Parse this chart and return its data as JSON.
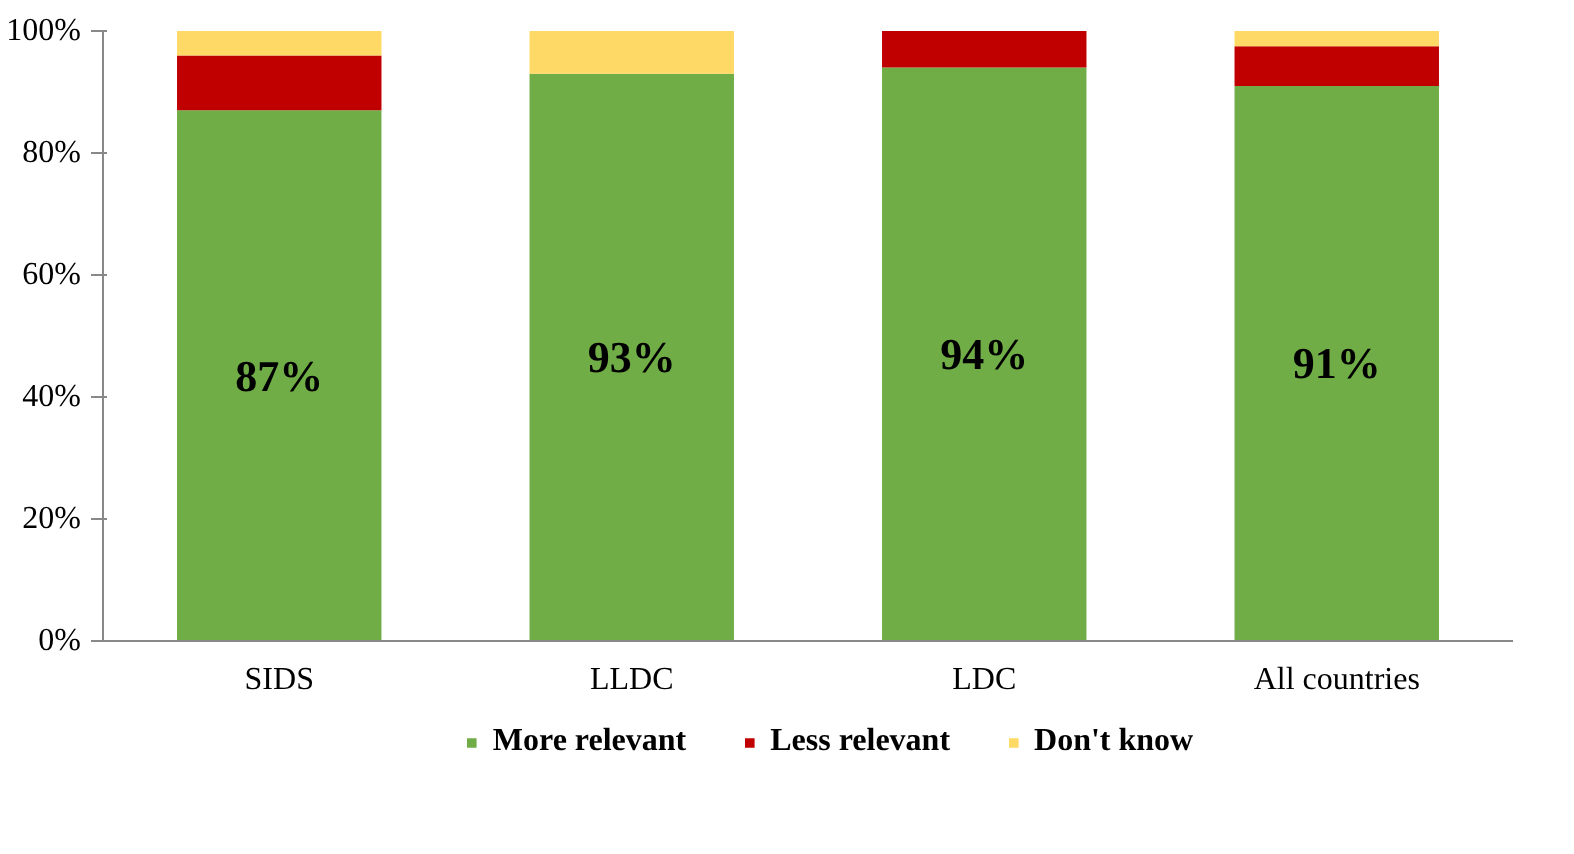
{
  "chart_data": {
    "type": "bar",
    "stacked": true,
    "categories": [
      "SIDS",
      "LLDC",
      "LDC",
      "All countries"
    ],
    "series": [
      {
        "name": "More relevant",
        "color": "#70ad47",
        "values": [
          87,
          93,
          94,
          91
        ],
        "value_labels": [
          "87%",
          "93%",
          "94%",
          "91%"
        ]
      },
      {
        "name": "Less relevant",
        "color": "#c00000",
        "values": [
          9,
          0,
          6,
          6.5
        ]
      },
      {
        "name": "Don't know",
        "color": "#ffd966",
        "values": [
          4,
          7,
          0,
          2.5
        ]
      }
    ],
    "ylim": [
      0,
      100
    ],
    "yticks": [
      {
        "value": 0,
        "label": "0%"
      },
      {
        "value": 20,
        "label": "20%"
      },
      {
        "value": 40,
        "label": "40%"
      },
      {
        "value": 60,
        "label": "60%"
      },
      {
        "value": 80,
        "label": "80%"
      },
      {
        "value": 100,
        "label": "100%"
      }
    ],
    "grid": false,
    "legend": "bottom"
  }
}
